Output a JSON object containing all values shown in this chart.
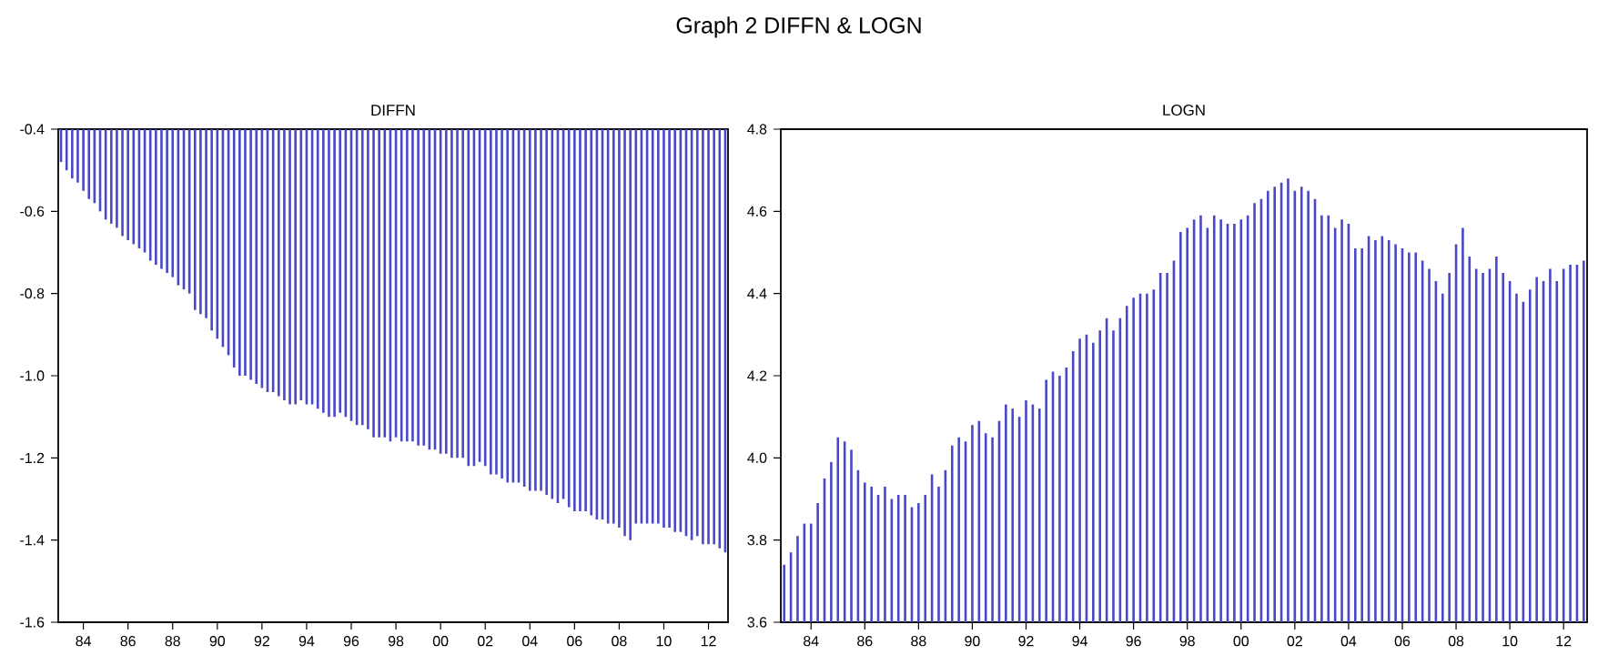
{
  "chart_data": [
    {
      "type": "bar",
      "title": "Graph 2  DIFFN  &  LOGN",
      "subtitle": "DIFFN",
      "color": "#4848c8",
      "x": [
        1983,
        1983.25,
        1983.5,
        1983.75,
        1984,
        1984.25,
        1984.5,
        1984.75,
        1985,
        1985.25,
        1985.5,
        1985.75,
        1986,
        1986.25,
        1986.5,
        1986.75,
        1987,
        1987.25,
        1987.5,
        1987.75,
        1988,
        1988.25,
        1988.5,
        1988.75,
        1989,
        1989.25,
        1989.5,
        1989.75,
        1990,
        1990.25,
        1990.5,
        1990.75,
        1991,
        1991.25,
        1991.5,
        1991.75,
        1992,
        1992.25,
        1992.5,
        1992.75,
        1993,
        1993.25,
        1993.5,
        1993.75,
        1994,
        1994.25,
        1994.5,
        1994.75,
        1995,
        1995.25,
        1995.5,
        1995.75,
        1996,
        1996.25,
        1996.5,
        1996.75,
        1997,
        1997.25,
        1997.5,
        1997.75,
        1998,
        1998.25,
        1998.5,
        1998.75,
        1999,
        1999.25,
        1999.5,
        1999.75,
        2000,
        2000.25,
        2000.5,
        2000.75,
        2001,
        2001.25,
        2001.5,
        2001.75,
        2002,
        2002.25,
        2002.5,
        2002.75,
        2003,
        2003.25,
        2003.5,
        2003.75,
        2004,
        2004.25,
        2004.5,
        2004.75,
        2005,
        2005.25,
        2005.5,
        2005.75,
        2006,
        2006.25,
        2006.5,
        2006.75,
        2007,
        2007.25,
        2007.5,
        2007.75,
        2008,
        2008.25,
        2008.5,
        2008.75,
        2009,
        2009.25,
        2009.5,
        2009.75,
        2010,
        2010.25,
        2010.5,
        2010.75,
        2011,
        2011.25,
        2011.5,
        2011.75,
        2012,
        2012.25,
        2012.5,
        2012.75
      ],
      "values": [
        -0.48,
        -0.5,
        -0.52,
        -0.53,
        -0.55,
        -0.57,
        -0.58,
        -0.6,
        -0.62,
        -0.63,
        -0.64,
        -0.66,
        -0.67,
        -0.68,
        -0.69,
        -0.7,
        -0.72,
        -0.73,
        -0.74,
        -0.75,
        -0.76,
        -0.78,
        -0.79,
        -0.8,
        -0.84,
        -0.85,
        -0.86,
        -0.89,
        -0.91,
        -0.93,
        -0.95,
        -0.98,
        -1.0,
        -1.0,
        -1.01,
        -1.02,
        -1.03,
        -1.04,
        -1.04,
        -1.05,
        -1.06,
        -1.07,
        -1.07,
        -1.06,
        -1.07,
        -1.07,
        -1.08,
        -1.09,
        -1.1,
        -1.1,
        -1.09,
        -1.1,
        -1.11,
        -1.12,
        -1.12,
        -1.13,
        -1.15,
        -1.15,
        -1.15,
        -1.16,
        -1.15,
        -1.16,
        -1.16,
        -1.16,
        -1.17,
        -1.17,
        -1.18,
        -1.18,
        -1.19,
        -1.19,
        -1.2,
        -1.2,
        -1.2,
        -1.22,
        -1.22,
        -1.21,
        -1.22,
        -1.24,
        -1.24,
        -1.25,
        -1.26,
        -1.26,
        -1.26,
        -1.27,
        -1.28,
        -1.28,
        -1.28,
        -1.29,
        -1.3,
        -1.31,
        -1.3,
        -1.32,
        -1.33,
        -1.33,
        -1.33,
        -1.34,
        -1.35,
        -1.35,
        -1.36,
        -1.36,
        -1.37,
        -1.39,
        -1.4,
        -1.36,
        -1.36,
        -1.36,
        -1.36,
        -1.36,
        -1.37,
        -1.37,
        -1.38,
        -1.38,
        -1.39,
        -1.4,
        -1.39,
        -1.41,
        -1.41,
        -1.41,
        -1.42,
        -1.43
      ],
      "xlim": [
        1982.875,
        2012.875
      ],
      "xticks": [
        {
          "value": 1984,
          "label": "84"
        },
        {
          "value": 1986,
          "label": "86"
        },
        {
          "value": 1988,
          "label": "88"
        },
        {
          "value": 1990,
          "label": "90"
        },
        {
          "value": 1992,
          "label": "92"
        },
        {
          "value": 1994,
          "label": "94"
        },
        {
          "value": 1996,
          "label": "96"
        },
        {
          "value": 1998,
          "label": "98"
        },
        {
          "value": 2000,
          "label": "00"
        },
        {
          "value": 2002,
          "label": "02"
        },
        {
          "value": 2004,
          "label": "04"
        },
        {
          "value": 2006,
          "label": "06"
        },
        {
          "value": 2008,
          "label": "08"
        },
        {
          "value": 2010,
          "label": "10"
        },
        {
          "value": 2012,
          "label": "12"
        }
      ],
      "ylim": [
        -1.6,
        -0.4
      ],
      "yticks": [
        -1.6,
        -1.4,
        -1.2,
        {
          "value": -1.0,
          "label": "-1.0"
        },
        -0.8,
        -0.6,
        -0.4
      ]
    },
    {
      "type": "bar",
      "subtitle": "LOGN",
      "color": "#4848c8",
      "x": [
        1983,
        1983.25,
        1983.5,
        1983.75,
        1984,
        1984.25,
        1984.5,
        1984.75,
        1985,
        1985.25,
        1985.5,
        1985.75,
        1986,
        1986.25,
        1986.5,
        1986.75,
        1987,
        1987.25,
        1987.5,
        1987.75,
        1988,
        1988.25,
        1988.5,
        1988.75,
        1989,
        1989.25,
        1989.5,
        1989.75,
        1990,
        1990.25,
        1990.5,
        1990.75,
        1991,
        1991.25,
        1991.5,
        1991.75,
        1992,
        1992.25,
        1992.5,
        1992.75,
        1993,
        1993.25,
        1993.5,
        1993.75,
        1994,
        1994.25,
        1994.5,
        1994.75,
        1995,
        1995.25,
        1995.5,
        1995.75,
        1996,
        1996.25,
        1996.5,
        1996.75,
        1997,
        1997.25,
        1997.5,
        1997.75,
        1998,
        1998.25,
        1998.5,
        1998.75,
        1999,
        1999.25,
        1999.5,
        1999.75,
        2000,
        2000.25,
        2000.5,
        2000.75,
        2001,
        2001.25,
        2001.5,
        2001.75,
        2002,
        2002.25,
        2002.5,
        2002.75,
        2003,
        2003.25,
        2003.5,
        2003.75,
        2004,
        2004.25,
        2004.5,
        2004.75,
        2005,
        2005.25,
        2005.5,
        2005.75,
        2006,
        2006.25,
        2006.5,
        2006.75,
        2007,
        2007.25,
        2007.5,
        2007.75,
        2008,
        2008.25,
        2008.5,
        2008.75,
        2009,
        2009.25,
        2009.5,
        2009.75,
        2010,
        2010.25,
        2010.5,
        2010.75,
        2011,
        2011.25,
        2011.5,
        2011.75,
        2012,
        2012.25,
        2012.5,
        2012.75
      ],
      "values": [
        3.74,
        3.77,
        3.81,
        3.84,
        3.84,
        3.89,
        3.95,
        3.99,
        4.05,
        4.04,
        4.02,
        3.97,
        3.94,
        3.93,
        3.91,
        3.93,
        3.9,
        3.91,
        3.91,
        3.88,
        3.89,
        3.91,
        3.96,
        3.93,
        3.97,
        4.03,
        4.05,
        4.04,
        4.08,
        4.09,
        4.06,
        4.05,
        4.09,
        4.13,
        4.12,
        4.1,
        4.14,
        4.13,
        4.12,
        4.19,
        4.21,
        4.2,
        4.22,
        4.26,
        4.29,
        4.3,
        4.28,
        4.31,
        4.34,
        4.31,
        4.34,
        4.37,
        4.39,
        4.4,
        4.4,
        4.41,
        4.45,
        4.45,
        4.48,
        4.55,
        4.56,
        4.58,
        4.59,
        4.56,
        4.59,
        4.58,
        4.57,
        4.57,
        4.58,
        4.59,
        4.62,
        4.63,
        4.65,
        4.66,
        4.67,
        4.68,
        4.65,
        4.66,
        4.65,
        4.63,
        4.59,
        4.59,
        4.56,
        4.58,
        4.57,
        4.51,
        4.51,
        4.54,
        4.53,
        4.54,
        4.53,
        4.52,
        4.51,
        4.5,
        4.5,
        4.48,
        4.46,
        4.43,
        4.4,
        4.45,
        4.52,
        4.56,
        4.49,
        4.46,
        4.45,
        4.46,
        4.49,
        4.45,
        4.43,
        4.4,
        4.38,
        4.41,
        4.44,
        4.43,
        4.46,
        4.43,
        4.46,
        4.47,
        4.47,
        4.48
      ],
      "xlim": [
        1982.875,
        2012.875
      ],
      "xticks": [
        {
          "value": 1984,
          "label": "84"
        },
        {
          "value": 1986,
          "label": "86"
        },
        {
          "value": 1988,
          "label": "88"
        },
        {
          "value": 1990,
          "label": "90"
        },
        {
          "value": 1992,
          "label": "92"
        },
        {
          "value": 1994,
          "label": "94"
        },
        {
          "value": 1996,
          "label": "96"
        },
        {
          "value": 1998,
          "label": "98"
        },
        {
          "value": 2000,
          "label": "00"
        },
        {
          "value": 2002,
          "label": "02"
        },
        {
          "value": 2004,
          "label": "04"
        },
        {
          "value": 2006,
          "label": "06"
        },
        {
          "value": 2008,
          "label": "08"
        },
        {
          "value": 2010,
          "label": "10"
        },
        {
          "value": 2012,
          "label": "12"
        }
      ],
      "ylim": [
        3.6,
        4.8
      ],
      "yticks": [
        3.6,
        3.8,
        {
          "value": 4.0,
          "label": "4.0"
        },
        4.2,
        4.4,
        4.6,
        4.8
      ]
    }
  ]
}
